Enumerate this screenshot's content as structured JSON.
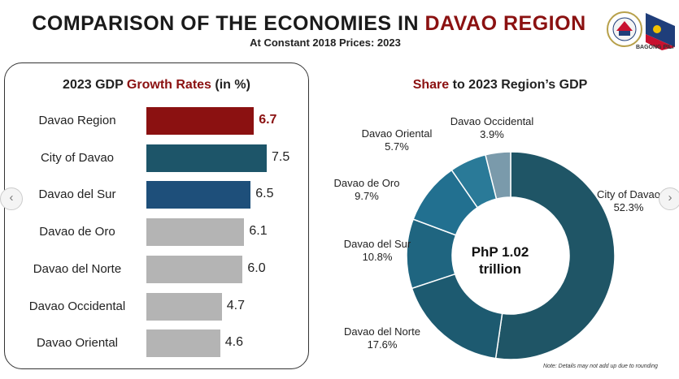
{
  "header": {
    "title_main": "COMPARISON OF THE ECONOMIES IN ",
    "title_highlight": "DAVAO REGION",
    "subtitle": "At Constant 2018 Prices: 2023",
    "logo_text": "BAGONG PILI"
  },
  "colors": {
    "davao_region": "#8b1111",
    "city_of_davao": "#1d5569",
    "davao_del_sur": "#1e4f7a",
    "others": "#b4b4b4"
  },
  "chart_data": [
    {
      "type": "bar",
      "orientation": "horizontal",
      "title_part1": "2023 GDP ",
      "title_part2": "Growth Rates",
      "title_part3": " (in %)",
      "categories": [
        "Davao Region",
        "City of Davao",
        "Davao del Sur",
        "Davao de Oro",
        "Davao del Norte",
        "Davao Occidental",
        "Davao Oriental"
      ],
      "values": [
        6.7,
        7.5,
        6.5,
        6.1,
        6.0,
        4.7,
        4.6
      ],
      "value_labels": [
        "6.7",
        "7.5",
        "6.5",
        "6.1",
        "6.0",
        "4.7",
        "4.6"
      ],
      "bar_colors": [
        "#8b1111",
        "#1d5569",
        "#1e4f7a",
        "#b4b4b4",
        "#b4b4b4",
        "#b4b4b4",
        "#b4b4b4"
      ],
      "xlim": [
        0,
        7.5
      ]
    },
    {
      "type": "pie",
      "donut": true,
      "title_part1": "Share",
      "title_part2": " to 2023 Region’s GDP",
      "center_label_line1": "PhP 1.02",
      "center_label_line2": "trillion",
      "slices": [
        {
          "name": "City of Davao",
          "value": 52.3,
          "label": "52.3%",
          "color": "#1f5566"
        },
        {
          "name": "Davao del Norte",
          "value": 17.6,
          "label": "17.6%",
          "color": "#1d5a70"
        },
        {
          "name": "Davao del Sur",
          "value": 10.8,
          "label": "10.8%",
          "color": "#1f6580"
        },
        {
          "name": "Davao de Oro",
          "value": 9.7,
          "label": "9.7%",
          "color": "#227090"
        },
        {
          "name": "Davao Oriental",
          "value": 5.7,
          "label": "5.7%",
          "color": "#2a7a98"
        },
        {
          "name": "Davao Occidental",
          "value": 3.9,
          "label": "3.9%",
          "color": "#7a9aab"
        }
      ]
    }
  ],
  "note": "Note: Details may not add up due to rounding"
}
